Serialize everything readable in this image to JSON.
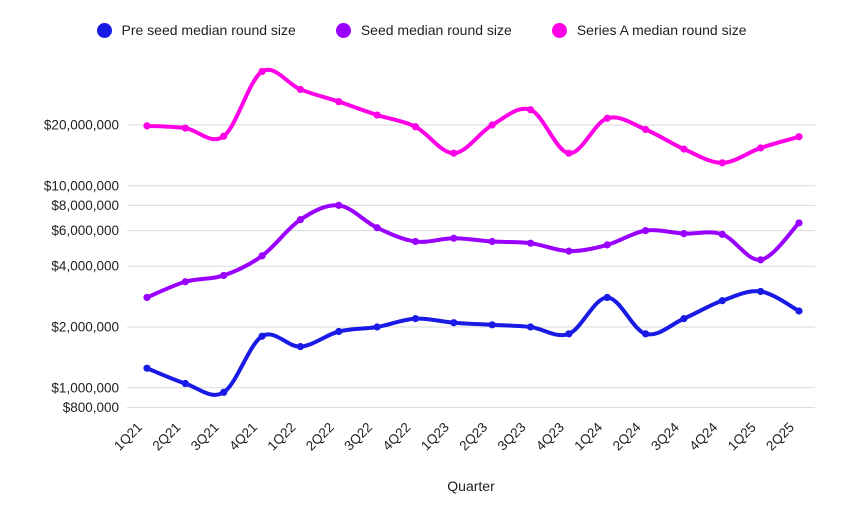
{
  "chart_data": {
    "type": "line",
    "title": "",
    "xlabel": "Quarter",
    "ylabel": "",
    "y_scale": "log",
    "grid": true,
    "legend_position": "top",
    "line_smoothing": true,
    "grid_color": "#d9d9d9",
    "axis_text_color": "#1f1f1f",
    "ylim": [
      800000,
      40000000
    ],
    "categories": [
      "1Q21",
      "2Q21",
      "3Q21",
      "4Q21",
      "1Q22",
      "2Q22",
      "3Q22",
      "4Q22",
      "1Q23",
      "2Q23",
      "3Q23",
      "4Q23",
      "1Q24",
      "2Q24",
      "3Q24",
      "4Q24",
      "1Q25",
      "2Q25"
    ],
    "y_ticks": [
      {
        "value": 800000,
        "label": "$800,000"
      },
      {
        "value": 1000000,
        "label": "$1,000,000"
      },
      {
        "value": 2000000,
        "label": "$2,000,000"
      },
      {
        "value": 4000000,
        "label": "$4,000,000"
      },
      {
        "value": 6000000,
        "label": "$6,000,000"
      },
      {
        "value": 8000000,
        "label": "$8,000,000"
      },
      {
        "value": 10000000,
        "label": "$10,000,000"
      },
      {
        "value": 20000000,
        "label": "$20,000,000"
      }
    ],
    "series": [
      {
        "name": "Pre seed median round size",
        "color": "#1a1ae6",
        "values": [
          1250000,
          1050000,
          950000,
          1800000,
          1600000,
          1900000,
          2000000,
          2200000,
          2100000,
          2050000,
          2000000,
          1850000,
          2800000,
          1850000,
          2200000,
          2700000,
          3000000,
          2400000
        ]
      },
      {
        "name": "Seed median round size",
        "color": "#9900ff",
        "values": [
          2800000,
          3350000,
          3600000,
          4500000,
          6800000,
          8000000,
          6200000,
          5300000,
          5500000,
          5300000,
          5200000,
          4750000,
          5100000,
          6000000,
          5800000,
          5750000,
          4300000,
          6550000
        ]
      },
      {
        "name": "Series A median round size",
        "color": "#ff00e6",
        "values": [
          19800000,
          19300000,
          17600000,
          36800000,
          30000000,
          26100000,
          22400000,
          19600000,
          14500000,
          20000000,
          23800000,
          14500000,
          21600000,
          19000000,
          15200000,
          13000000,
          15400000,
          17500000
        ]
      }
    ]
  }
}
